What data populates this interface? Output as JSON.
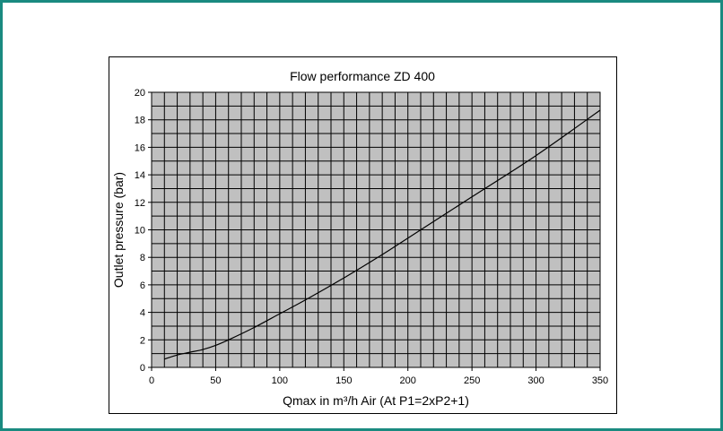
{
  "chart_data": {
    "type": "line",
    "title": "Flow performance ZD 400",
    "xlabel": "Qmax in m³/h Air (At P1=2xP2+1)",
    "ylabel": "Outlet pressure (bar)",
    "xlim": [
      0,
      350
    ],
    "ylim": [
      0,
      20
    ],
    "x_ticks": [
      "0",
      "50",
      "100",
      "150",
      "200",
      "250",
      "300",
      "350"
    ],
    "y_ticks": [
      "0",
      "2",
      "4",
      "6",
      "8",
      "10",
      "12",
      "14",
      "16",
      "18",
      "20"
    ],
    "grid": true,
    "legend": "none",
    "series": [
      {
        "x": [
          10,
          20,
          30,
          40,
          50,
          60,
          80,
          100,
          120,
          150,
          180,
          200,
          250,
          300,
          350
        ],
        "y": [
          0.6,
          0.9,
          1.1,
          1.3,
          1.6,
          2.0,
          2.9,
          3.9,
          4.9,
          6.5,
          8.2,
          9.4,
          12.4,
          15.4,
          18.7
        ]
      }
    ],
    "colors": {
      "plot_area": "#c0c0c0",
      "grid": "#000000",
      "line": "#000000",
      "frame": "#1a8a80"
    }
  }
}
